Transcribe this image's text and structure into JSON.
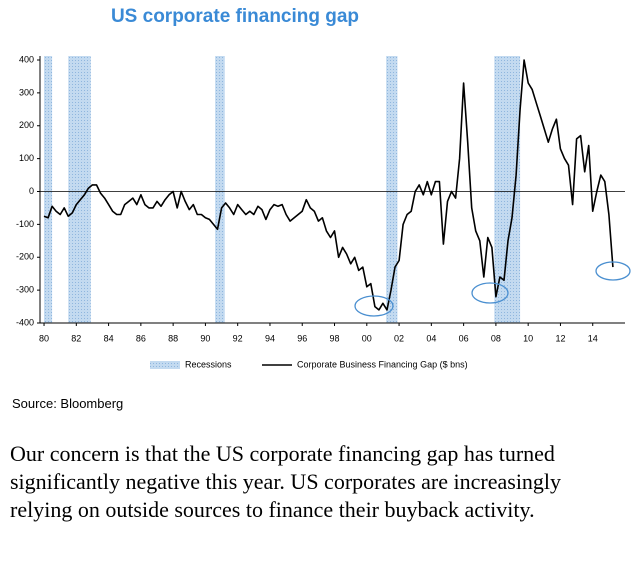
{
  "chart_data": {
    "type": "line",
    "title": "US corporate financing gap",
    "x": [
      1980.0,
      1980.25,
      1980.5,
      1980.75,
      1981.0,
      1981.25,
      1981.5,
      1981.75,
      1982.0,
      1982.25,
      1982.5,
      1982.75,
      1983.0,
      1983.25,
      1983.5,
      1983.75,
      1984.0,
      1984.25,
      1984.5,
      1984.75,
      1985.0,
      1985.25,
      1985.5,
      1985.75,
      1986.0,
      1986.25,
      1986.5,
      1986.75,
      1987.0,
      1987.25,
      1987.5,
      1987.75,
      1988.0,
      1988.25,
      1988.5,
      1988.75,
      1989.0,
      1989.25,
      1989.5,
      1989.75,
      1990.0,
      1990.25,
      1990.5,
      1990.75,
      1991.0,
      1991.25,
      1991.5,
      1991.75,
      1992.0,
      1992.25,
      1992.5,
      1992.75,
      1993.0,
      1993.25,
      1993.5,
      1993.75,
      1994.0,
      1994.25,
      1994.5,
      1994.75,
      1995.0,
      1995.25,
      1995.5,
      1995.75,
      1996.0,
      1996.25,
      1996.5,
      1996.75,
      1997.0,
      1997.25,
      1997.5,
      1997.75,
      1998.0,
      1998.25,
      1998.5,
      1998.75,
      1999.0,
      1999.25,
      1999.5,
      1999.75,
      2000.0,
      2000.25,
      2000.5,
      2000.75,
      2001.0,
      2001.25,
      2001.5,
      2001.75,
      2002.0,
      2002.25,
      2002.5,
      2002.75,
      2003.0,
      2003.25,
      2003.5,
      2003.75,
      2004.0,
      2004.25,
      2004.5,
      2004.75,
      2005.0,
      2005.25,
      2005.5,
      2005.75,
      2006.0,
      2006.25,
      2006.5,
      2006.75,
      2007.0,
      2007.25,
      2007.5,
      2007.75,
      2008.0,
      2008.25,
      2008.5,
      2008.75,
      2009.0,
      2009.25,
      2009.5,
      2009.75,
      2010.0,
      2010.25,
      2010.5,
      2010.75,
      2011.0,
      2011.25,
      2011.5,
      2011.75,
      2012.0,
      2012.25,
      2012.5,
      2012.75,
      2013.0,
      2013.25,
      2013.5,
      2013.75,
      2014.0,
      2014.25,
      2014.5,
      2014.75,
      2015.0,
      2015.25
    ],
    "series": [
      {
        "name": "Corporate Business Financing Gap ($ bns)",
        "color": "#000000",
        "values": [
          -75,
          -80,
          -45,
          -60,
          -70,
          -50,
          -75,
          -65,
          -40,
          -25,
          -10,
          10,
          20,
          20,
          -5,
          -20,
          -40,
          -60,
          -70,
          -70,
          -40,
          -30,
          -20,
          -40,
          -10,
          -40,
          -50,
          -50,
          -30,
          -45,
          -25,
          -10,
          0,
          -50,
          0,
          -30,
          -55,
          -40,
          -70,
          -70,
          -80,
          -85,
          -100,
          -115,
          -50,
          -35,
          -50,
          -70,
          -40,
          -55,
          -70,
          -60,
          -70,
          -45,
          -55,
          -85,
          -55,
          -40,
          -45,
          -40,
          -70,
          -90,
          -80,
          -70,
          -60,
          -25,
          -50,
          -60,
          -90,
          -80,
          -120,
          -140,
          -120,
          -200,
          -170,
          -190,
          -220,
          -200,
          -240,
          -230,
          -290,
          -280,
          -350,
          -360,
          -340,
          -360,
          -300,
          -230,
          -210,
          -100,
          -70,
          -60,
          0,
          20,
          -10,
          30,
          -10,
          30,
          30,
          -160,
          -30,
          0,
          -20,
          100,
          330,
          150,
          -50,
          -120,
          -150,
          -260,
          -140,
          -170,
          -320,
          -260,
          -270,
          -150,
          -80,
          50,
          250,
          400,
          330,
          310,
          270,
          230,
          190,
          150,
          190,
          220,
          130,
          100,
          80,
          -40,
          160,
          170,
          60,
          140,
          -60,
          0,
          50,
          30,
          -70,
          -230
        ]
      }
    ],
    "recessions": {
      "name": "Recessions",
      "color": "#c3daf0",
      "spans": [
        [
          1980.0,
          1980.5
        ],
        [
          1981.5,
          1982.9
        ],
        [
          1990.6,
          1991.2
        ],
        [
          2001.2,
          2001.9
        ],
        [
          2007.9,
          2009.5
        ]
      ]
    },
    "xlim": [
      1979.75,
      2016.0
    ],
    "xticks": [
      {
        "value": 1980,
        "label": "80"
      },
      {
        "value": 1982,
        "label": "82"
      },
      {
        "value": 1984,
        "label": "84"
      },
      {
        "value": 1986,
        "label": "86"
      },
      {
        "value": 1988,
        "label": "88"
      },
      {
        "value": 1990,
        "label": "90"
      },
      {
        "value": 1992,
        "label": "92"
      },
      {
        "value": 1994,
        "label": "94"
      },
      {
        "value": 1996,
        "label": "96"
      },
      {
        "value": 1998,
        "label": "98"
      },
      {
        "value": 2000,
        "label": "00"
      },
      {
        "value": 2002,
        "label": "02"
      },
      {
        "value": 2004,
        "label": "04"
      },
      {
        "value": 2006,
        "label": "06"
      },
      {
        "value": 2008,
        "label": "08"
      },
      {
        "value": 2010,
        "label": "10"
      },
      {
        "value": 2012,
        "label": "12"
      },
      {
        "value": 2014,
        "label": "14"
      }
    ],
    "ylim": [
      -400,
      400
    ],
    "yticks": [
      -400,
      -300,
      -200,
      -100,
      0,
      100,
      200,
      300,
      400
    ],
    "title_color": "#3a8ad6"
  },
  "source": "Source: Bloomberg",
  "commentary": "Our concern is that the US corporate financing gap has turned significantly negative this year. US corporates are increasingly relying on outside sources to finance their buyback activity."
}
